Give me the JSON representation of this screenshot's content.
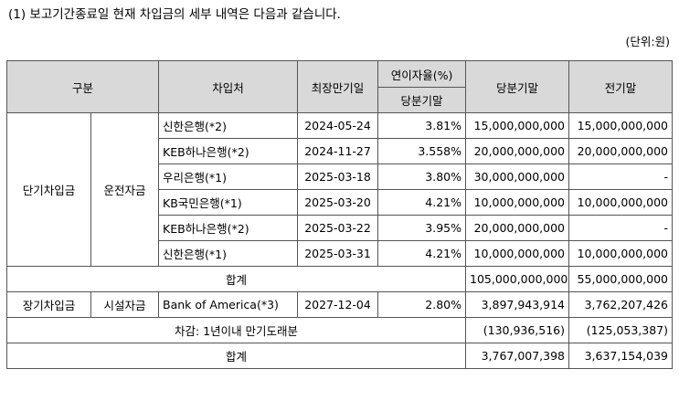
{
  "intro": "(1) 보고기간종료일 현재 차입금의 세부 내역은 다음과 같습니다.",
  "unit": "(단위:원)",
  "headers": {
    "category": "구분",
    "lender": "차입처",
    "maturity": "최장만기일",
    "rate_group": "연이자율(%)",
    "rate_sub": "당분기말",
    "current": "당분기말",
    "prior": "전기말"
  },
  "short_term": {
    "category": "단기차입금",
    "subcategory": "운전자금",
    "rows": [
      {
        "lender": "신한은행(*2)",
        "maturity": "2024-05-24",
        "rate": "3.81%",
        "current": "15,000,000,000",
        "prior": "15,000,000,000"
      },
      {
        "lender": "KEB하나은행(*2)",
        "maturity": "2024-11-27",
        "rate": "3.558%",
        "current": "20,000,000,000",
        "prior": "20,000,000,000"
      },
      {
        "lender": "우리은행(*1)",
        "maturity": "2025-03-18",
        "rate": "3.80%",
        "current": "30,000,000,000",
        "prior": "-"
      },
      {
        "lender": "KB국민은행(*1)",
        "maturity": "2025-03-20",
        "rate": "4.21%",
        "current": "10,000,000,000",
        "prior": "10,000,000,000"
      },
      {
        "lender": "KEB하나은행(*2)",
        "maturity": "2025-03-22",
        "rate": "3.95%",
        "current": "20,000,000,000",
        "prior": "-"
      },
      {
        "lender": "신한은행(*1)",
        "maturity": "2025-03-31",
        "rate": "4.21%",
        "current": "10,000,000,000",
        "prior": "10,000,000,000"
      }
    ],
    "total_label": "합계",
    "total_current": "105,000,000,000",
    "total_prior": "55,000,000,000"
  },
  "long_term": {
    "category": "장기차입금",
    "subcategory": "시설자금",
    "lender": "Bank of America(*3)",
    "maturity": "2027-12-04",
    "rate": "2.80%",
    "current": "3,897,943,914",
    "prior": "3,762,207,426"
  },
  "deduction": {
    "label": "차감: 1년이내 만기도래분",
    "current": "(130,936,516)",
    "prior": "(125,053,387)"
  },
  "grand_total": {
    "label": "합계",
    "current": "3,767,007,398",
    "prior": "3,637,154,039"
  }
}
